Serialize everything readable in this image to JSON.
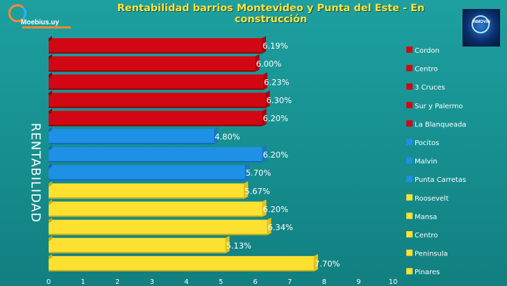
{
  "header": {
    "logo_text": "Moebius.uy",
    "badge_text": "INMOVIN"
  },
  "chart_data": {
    "type": "bar",
    "orientation": "horizontal",
    "title": "Rentabilidad barrios Montevideo y Punta del Este - En construcción",
    "ylabel": "RENTABILIDAD",
    "xlabel": "",
    "xlim": [
      0,
      10
    ],
    "xticks": [
      0,
      1,
      2,
      3,
      4,
      5,
      6,
      7,
      8,
      9,
      10
    ],
    "grid": false,
    "legend_position": "right",
    "colors": {
      "red": "#d10813",
      "blue": "#1e90e6",
      "yellow": "#fce130"
    },
    "bars": [
      {
        "name": "Cordon",
        "value": 6.19,
        "label": "6.19%",
        "color": "red"
      },
      {
        "name": "Centro",
        "value": 6.0,
        "label": "6.00%",
        "color": "red"
      },
      {
        "name": "3 Cruces",
        "value": 6.23,
        "label": "6.23%",
        "color": "red"
      },
      {
        "name": "Sur y Palermo",
        "value": 6.3,
        "label": "6.30%",
        "color": "red"
      },
      {
        "name": "La Blanqueada",
        "value": 6.2,
        "label": "6.20%",
        "color": "red"
      },
      {
        "name": "Pocitos",
        "value": 4.8,
        "label": "4.80%",
        "color": "blue"
      },
      {
        "name": "Malvin",
        "value": 6.2,
        "label": "6.20%",
        "color": "blue"
      },
      {
        "name": "Punta Carretas",
        "value": 5.7,
        "label": "5.70%",
        "color": "blue"
      },
      {
        "name": "Roosevelt",
        "value": 5.67,
        "label": "5.67%",
        "color": "yellow"
      },
      {
        "name": "Mansa",
        "value": 6.2,
        "label": "6.20%",
        "color": "yellow"
      },
      {
        "name": "Centro",
        "value": 6.34,
        "label": "6.34%",
        "color": "yellow"
      },
      {
        "name": "Peninsula",
        "value": 5.13,
        "label": "5.13%",
        "color": "yellow"
      },
      {
        "name": "Pinares",
        "value": 7.7,
        "label": "7.70%",
        "color": "yellow"
      }
    ]
  }
}
